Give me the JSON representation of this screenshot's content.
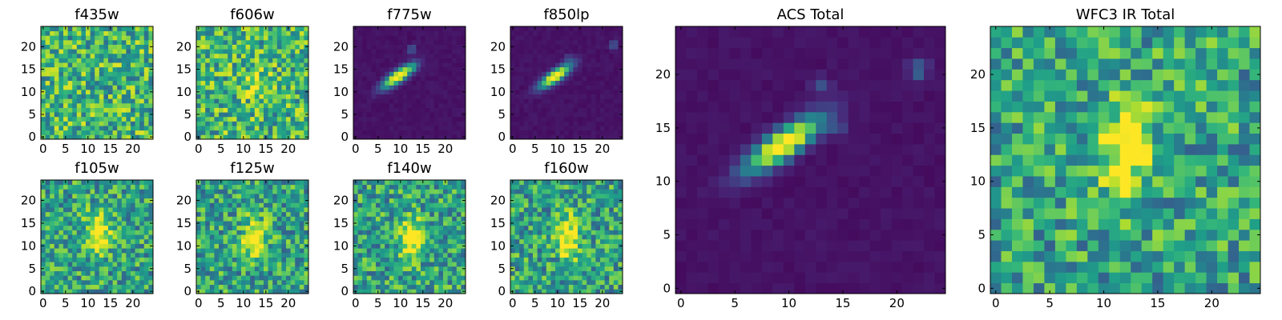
{
  "chart_data": [
    {
      "type": "heatmap",
      "title": "f435w",
      "xlim": [
        0,
        24
      ],
      "ylim": [
        0,
        24
      ],
      "xticks": [
        "0",
        "5",
        "10",
        "15",
        "20"
      ],
      "yticks": [
        "0",
        "5",
        "10",
        "15",
        "20"
      ],
      "colormap": "viridis",
      "pattern": "noise"
    },
    {
      "type": "heatmap",
      "title": "f606w",
      "xlim": [
        0,
        24
      ],
      "ylim": [
        0,
        24
      ],
      "xticks": [
        "0",
        "5",
        "10",
        "15",
        "20"
      ],
      "yticks": [
        "0",
        "5",
        "10",
        "15",
        "20"
      ],
      "colormap": "viridis",
      "pattern": "noise",
      "peak_center": [
        12,
        12
      ]
    },
    {
      "type": "heatmap",
      "title": "f775w",
      "xlim": [
        0,
        24
      ],
      "ylim": [
        0,
        24
      ],
      "xticks": [
        "0",
        "5",
        "10",
        "15",
        "20"
      ],
      "yticks": [
        "0",
        "5",
        "10",
        "15",
        "20"
      ],
      "colormap": "viridis",
      "pattern": "elongated",
      "source_center": [
        9.5,
        13.5
      ],
      "source_angle_deg": 35,
      "secondary_sources": [
        [
          12.5,
          19.5
        ],
        [
          13,
          15.5
        ]
      ]
    },
    {
      "type": "heatmap",
      "title": "f850lp",
      "xlim": [
        0,
        24
      ],
      "ylim": [
        0,
        24
      ],
      "xticks": [
        "0",
        "5",
        "10",
        "15",
        "20"
      ],
      "yticks": [
        "0",
        "5",
        "10",
        "15",
        "20"
      ],
      "colormap": "viridis",
      "pattern": "elongated",
      "source_center": [
        9.5,
        13.5
      ],
      "source_angle_deg": 35,
      "secondary_sources": [
        [
          22.5,
          20.5
        ],
        [
          12.5,
          17.5
        ]
      ]
    },
    {
      "type": "heatmap",
      "title": "ACS Total",
      "xlim": [
        0,
        24
      ],
      "ylim": [
        0,
        24
      ],
      "xticks": [
        "0",
        "5",
        "10",
        "15",
        "20"
      ],
      "yticks": [
        "0",
        "5",
        "10",
        "15",
        "20"
      ],
      "colormap": "viridis",
      "pattern": "elongated",
      "source_center": [
        9.5,
        13.5
      ],
      "source_angle_deg": 35,
      "secondary_sources": [
        [
          22,
          20.5
        ],
        [
          13,
          19
        ],
        [
          14.5,
          15
        ]
      ]
    },
    {
      "type": "heatmap",
      "title": "f105w",
      "xlim": [
        0,
        24
      ],
      "ylim": [
        0,
        24
      ],
      "xticks": [
        "0",
        "5",
        "10",
        "15",
        "20"
      ],
      "yticks": [
        "0",
        "5",
        "10",
        "15",
        "20"
      ],
      "colormap": "viridis",
      "pattern": "blob",
      "source_center": [
        12.5,
        13
      ]
    },
    {
      "type": "heatmap",
      "title": "f125w",
      "xlim": [
        0,
        24
      ],
      "ylim": [
        0,
        24
      ],
      "xticks": [
        "0",
        "5",
        "10",
        "15",
        "20"
      ],
      "yticks": [
        "0",
        "5",
        "10",
        "15",
        "20"
      ],
      "colormap": "viridis",
      "pattern": "blob",
      "source_center": [
        12.5,
        11.5
      ]
    },
    {
      "type": "heatmap",
      "title": "f140w",
      "xlim": [
        0,
        24
      ],
      "ylim": [
        0,
        24
      ],
      "xticks": [
        "0",
        "5",
        "10",
        "15",
        "20"
      ],
      "yticks": [
        "0",
        "5",
        "10",
        "15",
        "20"
      ],
      "colormap": "viridis",
      "pattern": "blob",
      "source_center": [
        12.5,
        12
      ]
    },
    {
      "type": "heatmap",
      "title": "f160w",
      "xlim": [
        0,
        24
      ],
      "ylim": [
        0,
        24
      ],
      "xticks": [
        "0",
        "5",
        "10",
        "15",
        "20"
      ],
      "yticks": [
        "0",
        "5",
        "10",
        "15",
        "20"
      ],
      "colormap": "viridis",
      "pattern": "blob",
      "source_center": [
        12.5,
        12
      ]
    },
    {
      "type": "heatmap",
      "title": "WFC3 IR Total",
      "xlim": [
        0,
        24
      ],
      "ylim": [
        0,
        24
      ],
      "xticks": [
        "0",
        "5",
        "10",
        "15",
        "20"
      ],
      "yticks": [
        "0",
        "5",
        "10",
        "15",
        "20"
      ],
      "colormap": "viridis",
      "pattern": "blob",
      "source_center": [
        12,
        13
      ]
    }
  ]
}
